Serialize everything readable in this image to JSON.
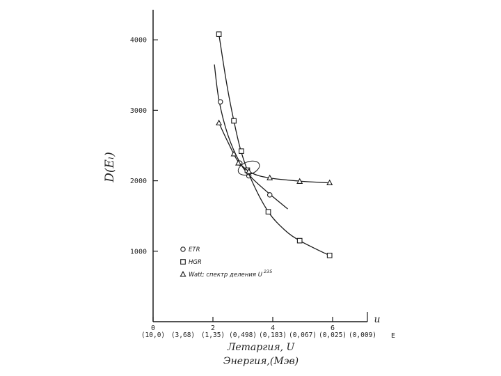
{
  "chart_data": {
    "type": "scatter",
    "title": "",
    "ylabel": "D(Eₗ)",
    "xlabel_primary": "Летаргия, U",
    "xlabel_secondary": "Энергия,(Мэв)",
    "x_axis_symbol": "u",
    "energy_axis_symbol": "E",
    "xlim": [
      0,
      7
    ],
    "ylim": [
      0,
      4500
    ],
    "x_ticks": [
      0,
      2,
      4,
      6
    ],
    "y_ticks": [
      1000,
      2000,
      3000,
      4000
    ],
    "energy_ticks": [
      {
        "u": 0,
        "label": "(10,0)"
      },
      {
        "u": 1,
        "label": "(3,68)"
      },
      {
        "u": 2,
        "label": "(1,35)"
      },
      {
        "u": 3,
        "label": "(0,498)"
      },
      {
        "u": 4,
        "label": "(0,183)"
      },
      {
        "u": 5,
        "label": "(0,067)"
      },
      {
        "u": 6,
        "label": "(0,025)"
      },
      {
        "u": 7,
        "label": "(0,009)"
      }
    ],
    "series": [
      {
        "name": "ETR",
        "marker": "circle",
        "points": [
          [
            2.25,
            3120
          ],
          [
            2.9,
            2250
          ],
          [
            3.2,
            2070
          ],
          [
            3.9,
            1800
          ]
        ],
        "curve": [
          [
            2.05,
            3650
          ],
          [
            2.2,
            3150
          ],
          [
            2.5,
            2650
          ],
          [
            2.9,
            2260
          ],
          [
            3.3,
            2040
          ],
          [
            3.9,
            1810
          ],
          [
            4.5,
            1600
          ]
        ]
      },
      {
        "name": "HGR",
        "marker": "square",
        "points": [
          [
            2.2,
            4080
          ],
          [
            2.7,
            2850
          ],
          [
            2.95,
            2420
          ],
          [
            3.15,
            2150
          ],
          [
            3.85,
            1560
          ],
          [
            4.9,
            1150
          ],
          [
            5.9,
            940
          ]
        ],
        "curve": [
          [
            2.2,
            4080
          ],
          [
            2.45,
            3400
          ],
          [
            2.7,
            2850
          ],
          [
            2.95,
            2400
          ],
          [
            3.3,
            2000
          ],
          [
            3.85,
            1560
          ],
          [
            4.4,
            1300
          ],
          [
            4.9,
            1150
          ],
          [
            5.5,
            1020
          ],
          [
            5.9,
            940
          ]
        ]
      },
      {
        "name": "Watt; спектр деления U",
        "name_superscript": "235",
        "marker": "triangle",
        "points": [
          [
            2.2,
            2820
          ],
          [
            2.7,
            2380
          ],
          [
            2.85,
            2250
          ],
          [
            3.2,
            2130
          ],
          [
            3.9,
            2040
          ],
          [
            4.9,
            1990
          ],
          [
            5.9,
            1970
          ]
        ],
        "curve": [
          [
            2.2,
            2820
          ],
          [
            2.5,
            2550
          ],
          [
            2.85,
            2270
          ],
          [
            3.3,
            2110
          ],
          [
            3.9,
            2040
          ],
          [
            4.9,
            1995
          ],
          [
            5.9,
            1970
          ]
        ]
      }
    ],
    "legend_position": "bottom-left",
    "grid": false
  }
}
